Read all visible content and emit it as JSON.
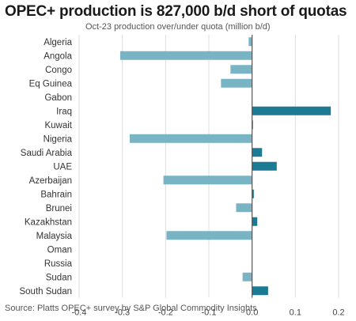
{
  "title": "OPEC+ production is 827,000 b/d short of quotas",
  "subtitle": "Oct-23 production over/under quota (million b/d)",
  "source": "Source: Platts OPEC+ survey by S&P Global Commodity Insights",
  "colors": {
    "negative": "#79b4c5",
    "positive": "#1d7a93",
    "grid": "#dddddd",
    "zero_line": "#555555"
  },
  "chart_data": {
    "type": "bar",
    "orientation": "horizontal",
    "title": "OPEC+ production is 827,000 b/d short of quotas",
    "subtitle": "Oct-23 production over/under quota (million b/d)",
    "xlabel": "",
    "ylabel": "",
    "xlim": [
      -0.4,
      0.2
    ],
    "xticks": [
      -0.4,
      -0.3,
      -0.2,
      -0.1,
      0.0,
      0.1,
      0.2
    ],
    "xtick_labels": [
      "-0.4",
      "-0.3",
      "-0.2",
      "-0.1",
      "0.0",
      "0.1",
      "0.2"
    ],
    "grid": "vertical",
    "categories": [
      "Algeria",
      "Angola",
      "Congo",
      "Eq Guinea",
      "Gabon",
      "Iraq",
      "Kuwait",
      "Nigeria",
      "Saudi Arabia",
      "UAE",
      "Azerbaijan",
      "Bahrain",
      "Brunei",
      "Kazakhstan",
      "Malaysia",
      "Oman",
      "Russia",
      "Sudan",
      "South Sudan"
    ],
    "values": [
      -0.008,
      -0.305,
      -0.05,
      -0.072,
      0.0,
      0.182,
      0.002,
      -0.283,
      0.023,
      0.057,
      -0.205,
      0.004,
      -0.037,
      0.012,
      -0.198,
      0.0,
      0.0,
      -0.022,
      0.037
    ]
  }
}
